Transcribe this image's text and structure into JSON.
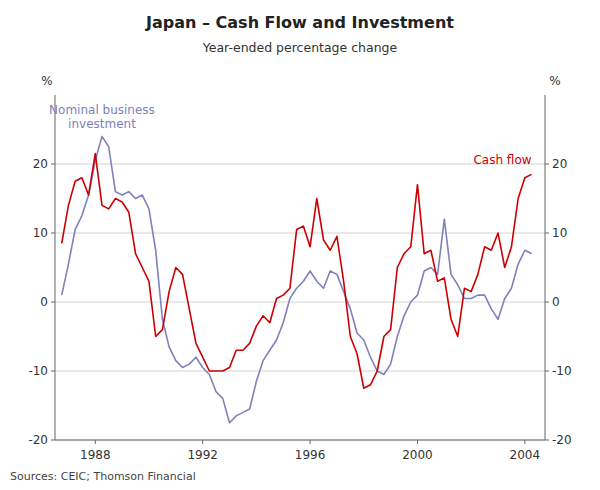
{
  "chart_data": {
    "type": "line",
    "title": "Japan – Cash Flow and Investment",
    "subtitle": "Year-ended percentage change",
    "source": "Sources: CEIC; Thomson Financial",
    "y_label": "%",
    "y2_label": "%",
    "xlim": [
      1986.5,
      2004.75
    ],
    "xticks": [
      1988,
      1992,
      1996,
      2000,
      2004
    ],
    "ylim": [
      -20,
      30
    ],
    "yticks": [
      -20,
      -10,
      0,
      10,
      20
    ],
    "y2lim": [
      -20,
      30
    ],
    "y2ticks": [
      -20,
      -10,
      0,
      10,
      20
    ],
    "grid": true,
    "x": [
      1986.75,
      1987.0,
      1987.25,
      1987.5,
      1987.75,
      1988.0,
      1988.25,
      1988.5,
      1988.75,
      1989.0,
      1989.25,
      1989.5,
      1989.75,
      1990.0,
      1990.25,
      1990.5,
      1990.75,
      1991.0,
      1991.25,
      1991.5,
      1991.75,
      1992.0,
      1992.25,
      1992.5,
      1992.75,
      1993.0,
      1993.25,
      1993.5,
      1993.75,
      1994.0,
      1994.25,
      1994.5,
      1994.75,
      1995.0,
      1995.25,
      1995.5,
      1995.75,
      1996.0,
      1996.25,
      1996.5,
      1996.75,
      1997.0,
      1997.25,
      1997.5,
      1997.75,
      1998.0,
      1998.25,
      1998.5,
      1998.75,
      1999.0,
      1999.25,
      1999.5,
      1999.75,
      2000.0,
      2000.25,
      2000.5,
      2000.75,
      2001.0,
      2001.25,
      2001.5,
      2001.75,
      2002.0,
      2002.25,
      2002.5,
      2002.75,
      2003.0,
      2003.25,
      2003.5,
      2003.75,
      2004.0,
      2004.25
    ],
    "series": [
      {
        "name": "Nominal business\ninvestment",
        "color": "#8080bb",
        "values": [
          1.0,
          5.5,
          10.5,
          12.5,
          15.5,
          20.5,
          24.0,
          22.5,
          16.0,
          15.5,
          16.0,
          15.0,
          15.5,
          13.5,
          7.5,
          -2.5,
          -6.5,
          -8.5,
          -9.5,
          -9.0,
          -8.0,
          -9.5,
          -10.5,
          -13.0,
          -14.0,
          -17.5,
          -16.5,
          -16.0,
          -15.5,
          -11.5,
          -8.5,
          -7.0,
          -5.5,
          -3.0,
          0.5,
          2.0,
          3.0,
          4.5,
          3.0,
          2.0,
          4.5,
          4.0,
          1.5,
          -1.0,
          -4.5,
          -5.5,
          -8.0,
          -10.0,
          -10.5,
          -9.0,
          -5.0,
          -2.0,
          0.0,
          1.0,
          4.5,
          5.0,
          4.0,
          12.0,
          4.0,
          2.5,
          0.5,
          0.5,
          1.0,
          1.0,
          -1.0,
          -2.5,
          0.5,
          2.0,
          5.5,
          7.5,
          7.0
        ]
      },
      {
        "name": "Cash flow",
        "color": "#cc0000",
        "values": [
          8.5,
          14.0,
          17.5,
          18.0,
          15.5,
          21.5,
          14.0,
          13.5,
          15.0,
          14.5,
          13.0,
          7.0,
          5.0,
          3.0,
          -5.0,
          -4.0,
          1.5,
          5.0,
          4.0,
          -1.0,
          -6.0,
          -8.0,
          -10.0,
          -10.0,
          -10.0,
          -9.5,
          -7.0,
          -7.0,
          -6.0,
          -3.5,
          -2.0,
          -3.0,
          0.5,
          1.0,
          2.0,
          10.5,
          11.0,
          8.0,
          15.0,
          9.0,
          7.5,
          9.5,
          3.0,
          -5.0,
          -7.5,
          -12.5,
          -12.0,
          -10.0,
          -5.0,
          -4.0,
          5.0,
          7.0,
          8.0,
          17.0,
          7.0,
          7.5,
          3.0,
          3.5,
          -2.5,
          -5.0,
          2.0,
          1.5,
          4.0,
          8.0,
          7.5,
          10.0,
          5.0,
          8.0,
          15.0,
          18.0,
          18.5
        ]
      }
    ]
  }
}
